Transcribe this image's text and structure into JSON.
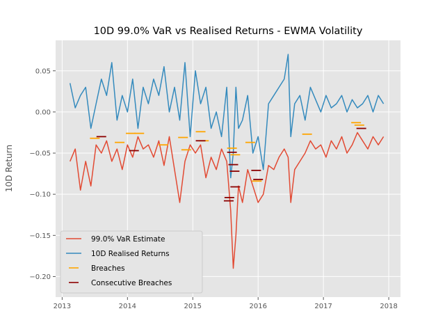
{
  "chart_data": {
    "type": "line",
    "title": "10D 99.0% VaR vs Realised Returns - EWMA Volatility",
    "xlabel": "",
    "ylabel": "10D Return",
    "xlim": [
      2012.9,
      2018.18
    ],
    "ylim": [
      -0.225,
      0.087
    ],
    "x_ticks": [
      2013,
      2014,
      2015,
      2016,
      2017,
      2018
    ],
    "x_tick_labels": [
      "2013",
      "2014",
      "2015",
      "2016",
      "2017",
      "2018"
    ],
    "y_ticks": [
      0.05,
      0.0,
      -0.05,
      -0.1,
      -0.15,
      -0.2
    ],
    "y_tick_labels": [
      "0.05",
      "0.00",
      "−0.05",
      "−0.10",
      "−0.15",
      "−0.20"
    ],
    "grid": true,
    "legend_position": "lower-left",
    "background": "#e5e5e5",
    "series": [
      {
        "name": "99.0% VaR Estimate",
        "color": "#e24a33",
        "x": [
          2013.12,
          2013.2,
          2013.28,
          2013.36,
          2013.44,
          2013.52,
          2013.6,
          2013.68,
          2013.76,
          2013.84,
          2013.92,
          2014.0,
          2014.08,
          2014.16,
          2014.24,
          2014.32,
          2014.4,
          2014.48,
          2014.56,
          2014.64,
          2014.72,
          2014.8,
          2014.88,
          2014.96,
          2015.04,
          2015.12,
          2015.2,
          2015.28,
          2015.36,
          2015.44,
          2015.52,
          2015.58,
          2015.62,
          2015.66,
          2015.7,
          2015.76,
          2015.84,
          2015.92,
          2016.0,
          2016.08,
          2016.16,
          2016.24,
          2016.32,
          2016.4,
          2016.46,
          2016.5,
          2016.56,
          2016.64,
          2016.72,
          2016.8,
          2016.88,
          2016.96,
          2017.04,
          2017.12,
          2017.2,
          2017.28,
          2017.36,
          2017.44,
          2017.52,
          2017.6,
          2017.68,
          2017.76,
          2017.84,
          2017.92
        ],
        "values": [
          -0.06,
          -0.045,
          -0.095,
          -0.06,
          -0.09,
          -0.04,
          -0.05,
          -0.035,
          -0.06,
          -0.045,
          -0.07,
          -0.04,
          -0.055,
          -0.03,
          -0.045,
          -0.04,
          -0.055,
          -0.035,
          -0.065,
          -0.03,
          -0.07,
          -0.11,
          -0.06,
          -0.04,
          -0.05,
          -0.04,
          -0.08,
          -0.055,
          -0.07,
          -0.045,
          -0.06,
          -0.12,
          -0.19,
          -0.15,
          -0.09,
          -0.11,
          -0.07,
          -0.09,
          -0.11,
          -0.1,
          -0.065,
          -0.07,
          -0.055,
          -0.045,
          -0.055,
          -0.11,
          -0.07,
          -0.06,
          -0.05,
          -0.035,
          -0.045,
          -0.04,
          -0.055,
          -0.035,
          -0.045,
          -0.03,
          -0.05,
          -0.04,
          -0.025,
          -0.035,
          -0.045,
          -0.03,
          -0.04,
          -0.03
        ]
      },
      {
        "name": "10D Realised Returns",
        "color": "#348abd",
        "x": [
          2013.12,
          2013.2,
          2013.28,
          2013.36,
          2013.44,
          2013.52,
          2013.6,
          2013.68,
          2013.76,
          2013.84,
          2013.92,
          2014.0,
          2014.08,
          2014.16,
          2014.24,
          2014.32,
          2014.4,
          2014.48,
          2014.56,
          2014.64,
          2014.72,
          2014.8,
          2014.88,
          2014.96,
          2015.04,
          2015.12,
          2015.2,
          2015.28,
          2015.36,
          2015.44,
          2015.52,
          2015.58,
          2015.62,
          2015.66,
          2015.7,
          2015.76,
          2015.84,
          2015.92,
          2016.0,
          2016.08,
          2016.16,
          2016.24,
          2016.32,
          2016.4,
          2016.46,
          2016.5,
          2016.56,
          2016.64,
          2016.72,
          2016.8,
          2016.88,
          2016.96,
          2017.04,
          2017.12,
          2017.2,
          2017.28,
          2017.36,
          2017.44,
          2017.52,
          2017.6,
          2017.68,
          2017.76,
          2017.84,
          2017.92
        ],
        "values": [
          0.035,
          0.005,
          0.02,
          0.03,
          -0.02,
          0.01,
          0.04,
          0.02,
          0.06,
          -0.01,
          0.02,
          0.0,
          0.04,
          -0.02,
          0.03,
          0.01,
          0.04,
          0.02,
          0.055,
          0.0,
          0.03,
          -0.01,
          0.06,
          -0.03,
          0.05,
          0.01,
          0.03,
          -0.02,
          0.0,
          -0.03,
          0.03,
          -0.08,
          -0.05,
          0.03,
          -0.02,
          -0.01,
          0.02,
          -0.05,
          -0.03,
          -0.07,
          0.01,
          0.02,
          0.03,
          0.04,
          0.07,
          -0.03,
          0.01,
          0.02,
          -0.01,
          0.03,
          0.015,
          0.0,
          0.02,
          0.005,
          0.01,
          0.02,
          0.0,
          0.015,
          0.005,
          0.01,
          0.02,
          0.0,
          0.02,
          0.01
        ]
      }
    ],
    "breaches": {
      "name": "Breaches",
      "color": "#ffa500",
      "points": [
        [
          2013.5,
          -0.032
        ],
        [
          2013.88,
          -0.037
        ],
        [
          2014.05,
          -0.026
        ],
        [
          2014.18,
          -0.026
        ],
        [
          2014.55,
          -0.04
        ],
        [
          2014.85,
          -0.031
        ],
        [
          2014.9,
          -0.046
        ],
        [
          2015.12,
          -0.024
        ],
        [
          2015.17,
          -0.035
        ],
        [
          2015.6,
          -0.044
        ],
        [
          2015.65,
          -0.052
        ],
        [
          2015.88,
          -0.037
        ],
        [
          2015.98,
          -0.084
        ],
        [
          2016.75,
          -0.027
        ],
        [
          2017.5,
          -0.013
        ],
        [
          2017.55,
          -0.016
        ]
      ]
    },
    "consecutive_breaches": {
      "name": "Consecutive Breaches",
      "color": "#8b0000",
      "points": [
        [
          2013.6,
          -0.03
        ],
        [
          2014.1,
          -0.047
        ],
        [
          2015.12,
          -0.035
        ],
        [
          2015.55,
          -0.108
        ],
        [
          2015.56,
          -0.104
        ],
        [
          2015.6,
          -0.049
        ],
        [
          2015.62,
          -0.064
        ],
        [
          2015.64,
          -0.072
        ],
        [
          2015.65,
          -0.091
        ],
        [
          2015.97,
          -0.071
        ],
        [
          2016.0,
          -0.082
        ],
        [
          2017.58,
          -0.02
        ]
      ]
    }
  }
}
